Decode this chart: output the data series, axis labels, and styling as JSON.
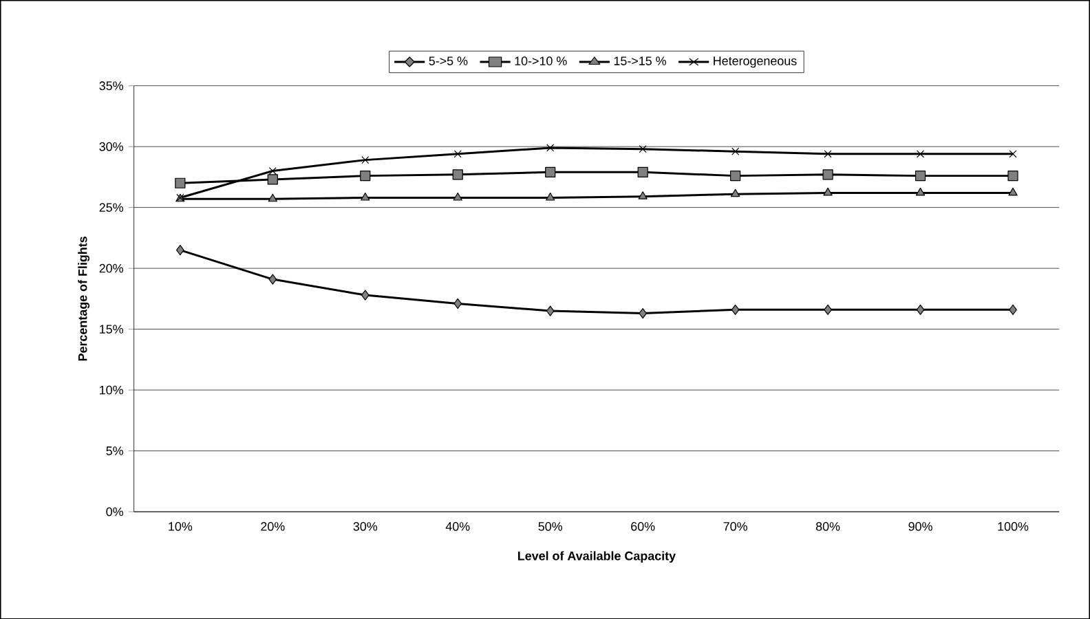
{
  "chart_data": {
    "type": "line",
    "xlabel": "Level of Available Capacity",
    "ylabel": "Percentage of Flights",
    "categories": [
      "10%",
      "20%",
      "30%",
      "40%",
      "50%",
      "60%",
      "70%",
      "80%",
      "90%",
      "100%"
    ],
    "series": [
      {
        "name": "5->5 %",
        "color": "#000000",
        "marker": "diamond",
        "values": [
          21.5,
          19.1,
          17.8,
          17.1,
          16.5,
          16.3,
          16.6,
          16.6,
          16.6,
          16.6
        ]
      },
      {
        "name": "10->10 %",
        "color": "#000000",
        "marker": "square",
        "values": [
          27.0,
          27.3,
          27.6,
          27.7,
          27.9,
          27.9,
          27.6,
          27.7,
          27.6,
          27.6
        ]
      },
      {
        "name": "15->15 %",
        "color": "#000000",
        "marker": "triangle",
        "values": [
          25.7,
          25.7,
          25.8,
          25.8,
          25.8,
          25.9,
          26.1,
          26.2,
          26.2,
          26.2
        ]
      },
      {
        "name": "Heterogeneous",
        "color": "#000000",
        "marker": "cross",
        "values": [
          25.8,
          28.0,
          28.9,
          29.4,
          29.9,
          29.8,
          29.6,
          29.4,
          29.4,
          29.4
        ]
      }
    ],
    "ylim": [
      0,
      35
    ],
    "yticks": [
      {
        "value": 0,
        "label": "0%"
      },
      {
        "value": 5,
        "label": "5%"
      },
      {
        "value": 10,
        "label": "10%"
      },
      {
        "value": 15,
        "label": "15%"
      },
      {
        "value": 20,
        "label": "20%"
      },
      {
        "value": 25,
        "label": "25%"
      },
      {
        "value": 30,
        "label": "30%"
      },
      {
        "value": 35,
        "label": "35%"
      }
    ],
    "grid": "y",
    "legend": "top",
    "line_style": "solid"
  }
}
